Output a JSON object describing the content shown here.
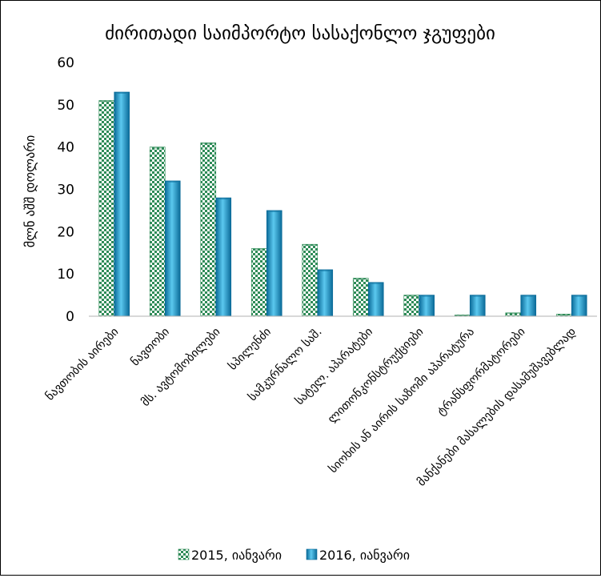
{
  "chart_data": {
    "type": "bar",
    "title": "ძირითადი საიმპორტო სასაქონლო ჯგუფები",
    "ylabel": "მლნ აშშ დოლარი",
    "xlabel": "",
    "ylim": [
      0,
      60
    ],
    "yticks": [
      0,
      10,
      20,
      30,
      40,
      50,
      60
    ],
    "grid": false,
    "legend_position": "bottom",
    "categories": [
      "ნავთობის აირები",
      "ნავთობი",
      "მს. ავტომობილები",
      "სპილენძი",
      "სამკურნალო საშ.",
      "სატელ. აპარატები",
      "ლითონკონსტრუქციები",
      "სიოხის ან აირის საზომი აპარატურა",
      "ტრანსფორმატორები",
      "მანქანები მასალების დასამუშავებლად"
    ],
    "series": [
      {
        "name": "2015, იანვარი",
        "values": [
          51,
          40,
          41,
          16,
          17,
          9,
          5,
          0.3,
          0.8,
          0.5
        ]
      },
      {
        "name": "2016, იანვარი",
        "values": [
          53,
          32,
          28,
          25,
          11,
          8,
          5,
          5,
          5,
          5
        ]
      }
    ],
    "colors": {
      "series1_light": "#ffffff",
      "series1_dark": "#2e8b57",
      "series2_light": "#5bc8ef",
      "series2_dark": "#0a6a98"
    }
  }
}
